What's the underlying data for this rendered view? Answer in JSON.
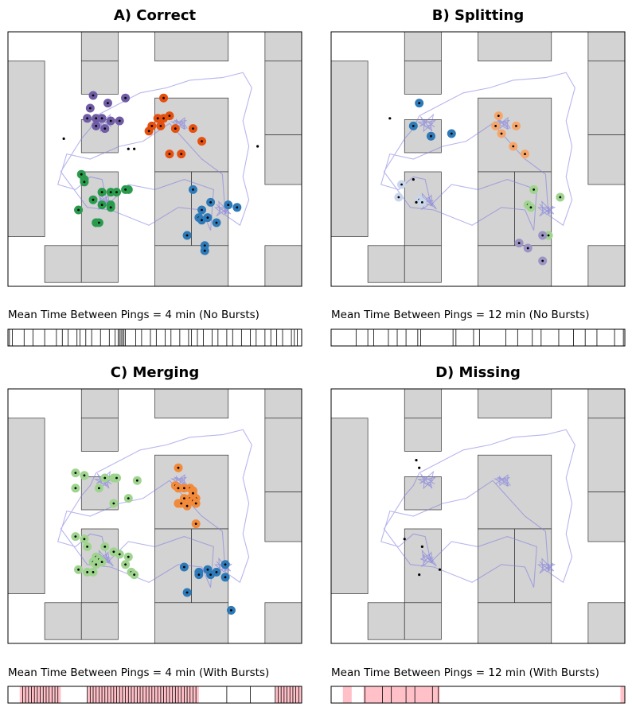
{
  "figure": {
    "panels": [
      {
        "title": "A) Correct",
        "caption": "Mean Time Between Pings = 4 min (No Bursts)"
      },
      {
        "title": "B) Splitting",
        "caption": "Mean Time Between Pings = 12 min (No Bursts)"
      },
      {
        "title": "C) Merging",
        "caption": "Mean Time Between Pings = 4 min (With Bursts)"
      },
      {
        "title": "D) Missing",
        "caption": "Mean Time Between Pings = 12 min (With Bursts)"
      }
    ]
  },
  "colors": {
    "building": "#d3d3d3",
    "building_edge": "#333333",
    "trajectory": "#7b78e0",
    "ping": "#000000",
    "burst_shade": "#ffc0c8",
    "stop_purple": "#6f5ca5",
    "stop_orange_dark": "#e5500f",
    "stop_green": "#2a9a4d",
    "stop_blue": "#2e7ab8",
    "stop_light_blue": "#c8d7ec",
    "stop_light_orange": "#f6a66a",
    "stop_light_green": "#9fd48f",
    "stop_light_purple": "#9b94c4",
    "stop_orange": "#f28a3a"
  },
  "chart_data": [
    {
      "type": "scatter",
      "title": "A) Correct",
      "caption": "Mean Time Between Pings = 4 min (No Bursts)",
      "xlim": [
        0,
        100
      ],
      "ylim": [
        0,
        100
      ],
      "clusters": [
        {
          "color": "#6f5ca5",
          "points": [
            [
              29,
              75
            ],
            [
              40,
              74
            ],
            [
              34,
              72
            ],
            [
              28,
              70
            ],
            [
              27,
              66
            ],
            [
              30,
              66
            ],
            [
              32,
              66
            ],
            [
              35,
              65
            ],
            [
              30,
              63
            ],
            [
              33,
              62
            ],
            [
              38,
              65
            ]
          ]
        },
        {
          "color": "#e5500f",
          "points": [
            [
              53,
              74
            ],
            [
              53,
              66
            ],
            [
              55,
              67
            ],
            [
              51,
              66
            ],
            [
              49,
              63
            ],
            [
              52,
              63
            ],
            [
              57,
              62
            ],
            [
              63,
              62
            ],
            [
              66,
              57
            ],
            [
              48,
              61
            ],
            [
              55,
              52
            ],
            [
              59,
              52
            ]
          ]
        },
        {
          "color": "#2a9a4d",
          "points": [
            [
              25,
              44
            ],
            [
              26,
              42
            ],
            [
              26,
              41
            ],
            [
              32,
              37
            ],
            [
              35,
              37
            ],
            [
              37,
              37
            ],
            [
              41,
              38
            ],
            [
              40,
              38
            ],
            [
              29,
              34
            ],
            [
              32,
              32
            ],
            [
              35,
              32
            ],
            [
              35,
              31
            ],
            [
              24,
              30
            ],
            [
              30,
              25
            ],
            [
              31,
              25
            ]
          ]
        },
        {
          "color": "#2e7ab8",
          "points": [
            [
              63,
              38
            ],
            [
              69,
              33
            ],
            [
              75,
              32
            ],
            [
              78,
              31
            ],
            [
              66,
              30
            ],
            [
              65,
              27
            ],
            [
              66,
              26
            ],
            [
              68,
              27
            ],
            [
              71,
              25
            ],
            [
              61,
              20
            ],
            [
              67,
              16
            ],
            [
              67,
              14
            ]
          ]
        }
      ],
      "unclustered": [
        [
          19,
          58
        ],
        [
          41,
          54
        ],
        [
          43,
          54
        ],
        [
          85,
          55
        ]
      ],
      "burst_intervals": [],
      "ping_times": [
        0.5,
        1.5,
        5.5,
        8.5,
        12.5,
        16.5,
        18.5,
        20.5,
        23.5,
        24.5,
        26.5,
        28.5,
        31.5,
        34.5,
        36.5,
        37.5,
        38,
        38.5,
        39,
        39.5,
        40,
        43.5,
        45.5,
        48.5,
        50.5,
        53.5,
        55.5,
        58.5,
        61.5,
        62.5,
        64.5,
        66.5,
        69.5,
        71.5,
        74.5,
        76.5,
        79.5,
        82.5,
        84.5,
        87.5,
        89.5,
        91.5,
        93.5,
        96.5,
        97.5,
        98.5
      ]
    },
    {
      "type": "scatter",
      "title": "B) Splitting",
      "caption": "Mean Time Between Pings = 12 min (No Bursts)",
      "xlim": [
        0,
        100
      ],
      "ylim": [
        0,
        100
      ],
      "clusters": [
        {
          "color": "#2e7ab8",
          "points": [
            [
              30,
              72
            ],
            [
              28,
              63
            ],
            [
              34,
              59
            ],
            [
              41,
              60
            ]
          ]
        },
        {
          "color": "#f6a66a",
          "points": [
            [
              57,
              67
            ],
            [
              56,
              63
            ],
            [
              63,
              63
            ],
            [
              58,
              60
            ],
            [
              62,
              55
            ],
            [
              66,
              52
            ]
          ]
        },
        {
          "color": "#c8d7ec",
          "points": [
            [
              24,
              40
            ],
            [
              23,
              35
            ],
            [
              30,
              34
            ],
            [
              31,
              33
            ]
          ]
        },
        {
          "color": "#9fd48f",
          "points": [
            [
              69,
              38
            ],
            [
              78,
              35
            ],
            [
              67,
              32
            ],
            [
              68,
              31
            ],
            [
              74,
              20
            ]
          ]
        },
        {
          "color": "#9b94c4",
          "points": [
            [
              64,
              17
            ],
            [
              67,
              15
            ],
            [
              72,
              20
            ],
            [
              72,
              10
            ]
          ]
        }
      ],
      "unclustered": [
        [
          20,
          66
        ],
        [
          28,
          42
        ],
        [
          29,
          33
        ]
      ],
      "burst_intervals": [],
      "ping_times": [
        8.5,
        12.5,
        14.5,
        19.5,
        22.5,
        25.5,
        29.5,
        30.5,
        41.5,
        42.5,
        48.5,
        50.5,
        59.5,
        63.5,
        68.5,
        71.5,
        77.5,
        82.5,
        86.5,
        90.5,
        96.5,
        99.5
      ]
    },
    {
      "type": "scatter",
      "title": "C) Merging",
      "caption": "Mean Time Between Pings = 4 min (With Bursts)",
      "xlim": [
        0,
        100
      ],
      "ylim": [
        0,
        100
      ],
      "clusters": [
        {
          "color": "#9fd48f",
          "points": [
            [
              23,
              67
            ],
            [
              26,
              66
            ],
            [
              23,
              61
            ],
            [
              31,
              61
            ],
            [
              33,
              65
            ],
            [
              36,
              65
            ],
            [
              37,
              65
            ],
            [
              44,
              64
            ],
            [
              41,
              57
            ],
            [
              36,
              55
            ],
            [
              23,
              42
            ],
            [
              26,
              41
            ],
            [
              27,
              38
            ],
            [
              33,
              38
            ],
            [
              36,
              36
            ],
            [
              38,
              35
            ],
            [
              41,
              34
            ],
            [
              30,
              34
            ],
            [
              31,
              33
            ],
            [
              29,
              32
            ],
            [
              32,
              32
            ],
            [
              30,
              31
            ],
            [
              40,
              31
            ],
            [
              24,
              29
            ],
            [
              27,
              28
            ],
            [
              29,
              28
            ],
            [
              42,
              28
            ],
            [
              43,
              27
            ]
          ]
        },
        {
          "color": "#f28a3a",
          "points": [
            [
              58,
              69
            ],
            [
              57,
              62
            ],
            [
              58,
              61
            ],
            [
              60,
              61
            ],
            [
              62,
              61
            ],
            [
              63,
              60
            ],
            [
              63,
              59
            ],
            [
              60,
              57
            ],
            [
              62,
              57
            ],
            [
              58,
              55
            ],
            [
              64,
              57
            ],
            [
              63,
              56
            ],
            [
              64,
              55
            ],
            [
              58,
              55
            ],
            [
              61,
              54
            ],
            [
              59,
              55
            ],
            [
              64,
              47
            ]
          ]
        },
        {
          "color": "#2e7ab8",
          "points": [
            [
              60,
              30
            ],
            [
              65,
              28
            ],
            [
              68,
              29
            ],
            [
              74,
              31
            ],
            [
              65,
              27
            ],
            [
              69,
              27
            ],
            [
              71,
              28
            ],
            [
              74,
              26
            ],
            [
              61,
              20
            ],
            [
              76,
              13
            ]
          ]
        }
      ],
      "unclustered": [],
      "burst_intervals": [
        [
          4,
          18
        ],
        [
          27,
          65
        ],
        [
          91,
          100
        ]
      ],
      "ping_times": [
        5,
        6,
        7,
        8,
        9,
        10,
        11,
        12,
        13,
        14,
        15,
        16,
        17,
        27,
        28,
        29,
        30,
        31,
        32,
        33,
        34,
        35,
        36,
        37,
        38,
        39,
        40,
        41,
        42,
        43,
        44,
        45,
        46,
        47,
        48,
        49,
        50,
        51,
        52,
        53,
        54,
        55,
        56,
        57,
        58,
        59,
        60,
        61,
        62,
        63,
        64,
        74.5,
        82.5,
        91,
        92,
        93,
        94,
        95,
        96,
        97,
        98,
        99
      ]
    },
    {
      "type": "scatter",
      "title": "D) Missing",
      "caption": "Mean Time Between Pings = 12 min (With Bursts)",
      "xlim": [
        0,
        100
      ],
      "ylim": [
        0,
        100
      ],
      "clusters": [],
      "unclustered": [
        [
          29,
          72
        ],
        [
          30,
          69
        ],
        [
          25,
          41
        ],
        [
          31,
          38
        ],
        [
          30,
          27
        ],
        [
          37,
          29
        ]
      ],
      "burst_intervals": [
        [
          4,
          7
        ],
        [
          11,
          37
        ],
        [
          98.5,
          100
        ]
      ],
      "ping_times": [
        11.5,
        17.5,
        20.5,
        25.5,
        28.5,
        34.5,
        36.5
      ]
    }
  ]
}
